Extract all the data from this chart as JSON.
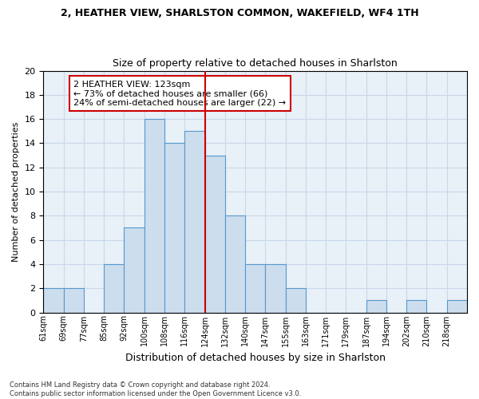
{
  "title": "2, HEATHER VIEW, SHARLSTON COMMON, WAKEFIELD, WF4 1TH",
  "subtitle": "Size of property relative to detached houses in Sharlston",
  "xlabel": "Distribution of detached houses by size in Sharlston",
  "ylabel": "Number of detached properties",
  "bin_labels": [
    "61sqm",
    "69sqm",
    "77sqm",
    "85sqm",
    "92sqm",
    "100sqm",
    "108sqm",
    "116sqm",
    "124sqm",
    "132sqm",
    "140sqm",
    "147sqm",
    "155sqm",
    "163sqm",
    "171sqm",
    "179sqm",
    "187sqm",
    "194sqm",
    "202sqm",
    "210sqm",
    "218sqm"
  ],
  "bar_heights": [
    2,
    2,
    0,
    4,
    7,
    16,
    14,
    15,
    13,
    8,
    4,
    4,
    2,
    0,
    0,
    0,
    1,
    0,
    1,
    0,
    1
  ],
  "bar_color": "#ccdded",
  "bar_edge_color": "#5599cc",
  "property_size_idx": 8,
  "vline_color": "#cc0000",
  "annotation_text": "2 HEATHER VIEW: 123sqm\n← 73% of detached houses are smaller (66)\n24% of semi-detached houses are larger (22) →",
  "annotation_box_color": "#cc0000",
  "ylim": [
    0,
    20
  ],
  "yticks": [
    0,
    2,
    4,
    6,
    8,
    10,
    12,
    14,
    16,
    18,
    20
  ],
  "grid_color": "#c8d8e8",
  "background_color": "#e8f0f8",
  "footer_text": "Contains HM Land Registry data © Crown copyright and database right 2024.\nContains public sector information licensed under the Open Government Licence v3.0."
}
